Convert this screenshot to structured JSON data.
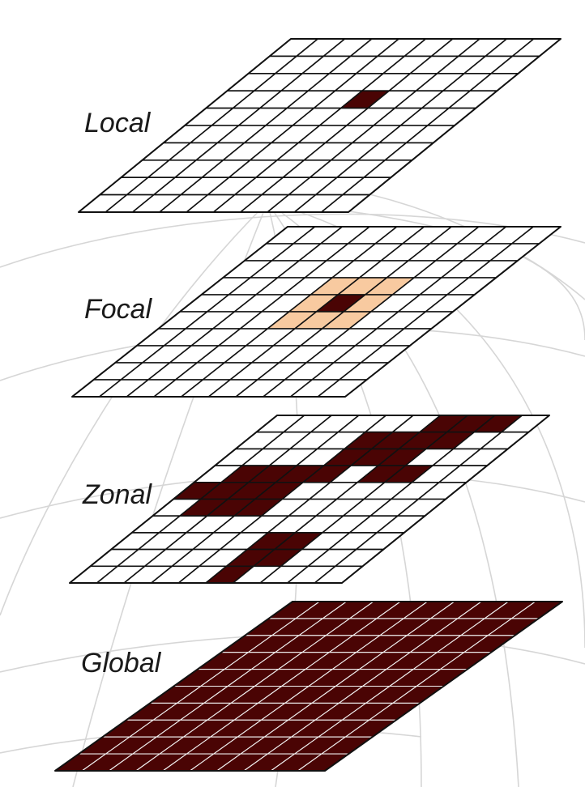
{
  "colors": {
    "empty_cell": "#ffffff",
    "selected_cell": "#4a0404",
    "neighborhood_cell": "#f8caa0",
    "grid_line": "#111111",
    "globe_line": "#d6d6d6"
  },
  "layers": [
    {
      "label": "Local",
      "rows": 10,
      "cols": 10,
      "selected": [
        [
          5,
          3
        ]
      ],
      "neighborhood": [],
      "all_selected": false
    },
    {
      "label": "Focal",
      "rows": 10,
      "cols": 10,
      "selected": [
        [
          5,
          4
        ]
      ],
      "neighborhood": [
        [
          4,
          3
        ],
        [
          5,
          3
        ],
        [
          6,
          3
        ],
        [
          4,
          4
        ],
        [
          6,
          4
        ],
        [
          4,
          5
        ],
        [
          5,
          5
        ],
        [
          6,
          5
        ]
      ],
      "all_selected": false
    },
    {
      "label": "Zonal",
      "rows": 10,
      "cols": 10,
      "selected": [
        [
          6,
          0
        ],
        [
          7,
          0
        ],
        [
          8,
          0
        ],
        [
          4,
          1
        ],
        [
          5,
          1
        ],
        [
          6,
          1
        ],
        [
          7,
          1
        ],
        [
          4,
          2
        ],
        [
          5,
          2
        ],
        [
          6,
          2
        ],
        [
          1,
          3
        ],
        [
          2,
          3
        ],
        [
          3,
          3
        ],
        [
          4,
          3
        ],
        [
          6,
          3
        ],
        [
          7,
          3
        ],
        [
          0,
          4
        ],
        [
          1,
          4
        ],
        [
          2,
          4
        ],
        [
          3,
          4
        ],
        [
          1,
          5
        ],
        [
          2,
          5
        ],
        [
          3,
          5
        ],
        [
          5,
          7
        ],
        [
          6,
          7
        ],
        [
          5,
          8
        ],
        [
          6,
          8
        ],
        [
          5,
          9
        ]
      ],
      "neighborhood": [],
      "all_selected": false
    },
    {
      "label": "Global",
      "rows": 10,
      "cols": 10,
      "selected": [],
      "neighborhood": [],
      "all_selected": true
    }
  ]
}
